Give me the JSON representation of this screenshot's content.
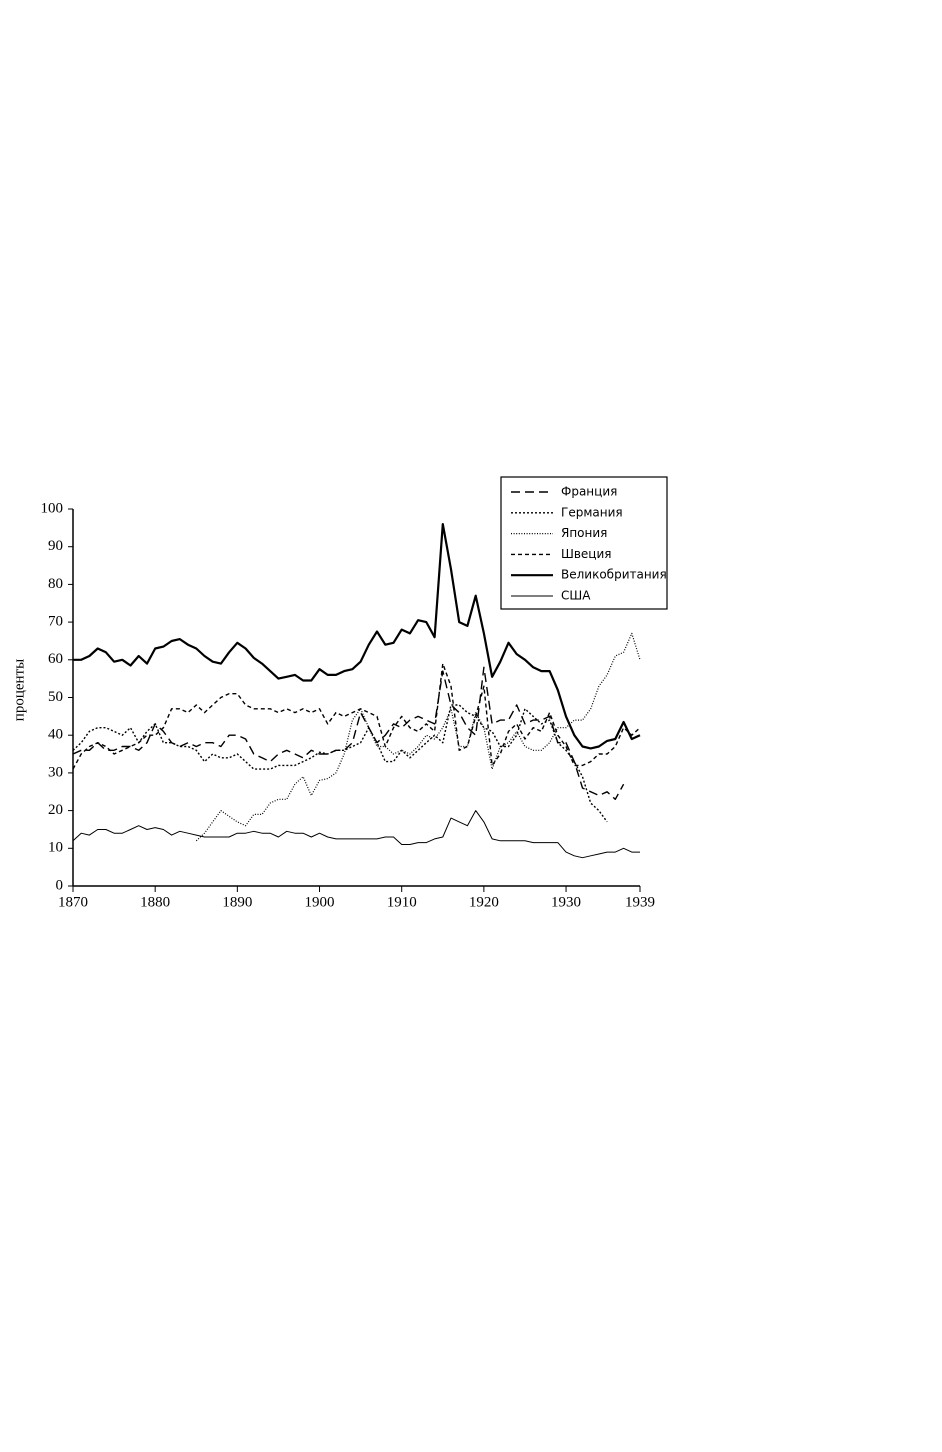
{
  "chart_data": {
    "type": "line",
    "y_label": "проценты",
    "x": [
      1870,
      1871,
      1872,
      1873,
      1874,
      1875,
      1876,
      1877,
      1878,
      1879,
      1880,
      1881,
      1882,
      1883,
      1884,
      1885,
      1886,
      1887,
      1888,
      1889,
      1890,
      1891,
      1892,
      1893,
      1894,
      1895,
      1896,
      1897,
      1898,
      1899,
      1900,
      1901,
      1902,
      1903,
      1904,
      1905,
      1906,
      1907,
      1908,
      1909,
      1910,
      1911,
      1912,
      1913,
      1914,
      1915,
      1916,
      1917,
      1918,
      1919,
      1920,
      1921,
      1922,
      1923,
      1924,
      1925,
      1926,
      1927,
      1928,
      1929,
      1930,
      1931,
      1932,
      1933,
      1934,
      1935,
      1936,
      1937,
      1938,
      1939
    ],
    "series": [
      {
        "name": "Франция",
        "color": "#000000",
        "linestyle": "dashed",
        "values": [
          35,
          36,
          36,
          38,
          36,
          36,
          37,
          37,
          36,
          38,
          43,
          41,
          38,
          37,
          38,
          37,
          38,
          38,
          37,
          40,
          40,
          39,
          35,
          34,
          33,
          35,
          36,
          35,
          34,
          36,
          35,
          35,
          36,
          36,
          38,
          46,
          42,
          38,
          40,
          43,
          42,
          44,
          45,
          44,
          43,
          57,
          48,
          46,
          42,
          40,
          58,
          43,
          44,
          44,
          48,
          43,
          44,
          44,
          45,
          38,
          38,
          33,
          26,
          25,
          24,
          25,
          23,
          27,
          null,
          null
        ]
      },
      {
        "name": "Германия",
        "color": "#000000",
        "linestyle": "dotted",
        "values": [
          36,
          38,
          41,
          42,
          42,
          41,
          40,
          42,
          38,
          41,
          43,
          38,
          38,
          37,
          37,
          36,
          33,
          35,
          34,
          34,
          35,
          33,
          31,
          31,
          31,
          32,
          32,
          32,
          33,
          34,
          35.5,
          35,
          36,
          36,
          37,
          38,
          42,
          38,
          33,
          33,
          36,
          34,
          36,
          38,
          40,
          38,
          48,
          48,
          46,
          45,
          42,
          41,
          37,
          37,
          40,
          47,
          45,
          43,
          44,
          38,
          36,
          33,
          29,
          22,
          20,
          17,
          null,
          null,
          null,
          null
        ]
      },
      {
        "name": "Япония",
        "color": "#000000",
        "linestyle": "densely-dotted",
        "values": [
          null,
          null,
          null,
          null,
          null,
          null,
          null,
          null,
          null,
          null,
          null,
          null,
          null,
          null,
          null,
          12,
          14,
          17,
          20,
          18.5,
          17,
          16,
          19,
          19,
          22,
          23,
          23,
          27,
          29,
          24,
          28,
          28.5,
          30,
          35,
          44,
          47,
          42,
          37,
          37,
          35,
          36,
          35,
          37,
          40,
          39,
          42,
          47,
          37,
          37,
          46,
          42,
          31,
          37,
          38,
          41,
          37,
          36,
          36,
          38,
          42,
          42,
          44,
          44,
          47,
          53,
          56,
          61,
          62,
          67,
          60
        ]
      },
      {
        "name": "Швеция",
        "color": "#000000",
        "linestyle": "short-dashed",
        "values": [
          31,
          35,
          37,
          38,
          37,
          35,
          36,
          37,
          38,
          40,
          40,
          42,
          47,
          47,
          46,
          48,
          46,
          48,
          50,
          51,
          51,
          48,
          47,
          47,
          47,
          46,
          47,
          46,
          47,
          46,
          47,
          43,
          46,
          45,
          46,
          47,
          46,
          45,
          37,
          42,
          45,
          42,
          41,
          43,
          41,
          59,
          53,
          36,
          37,
          45,
          53,
          32,
          35,
          41,
          43,
          39,
          42,
          41,
          46,
          40,
          37,
          32,
          32,
          33,
          35,
          35,
          37,
          42,
          40,
          42
        ]
      },
      {
        "name": "Великобритания",
        "color": "#000000",
        "linestyle": "thick-solid",
        "values": [
          60,
          60,
          61,
          63,
          62,
          59.5,
          60,
          58.5,
          61,
          59,
          63,
          63.5,
          65,
          65.5,
          64,
          63,
          61,
          59.5,
          59,
          62,
          64.5,
          63,
          60.5,
          59,
          57,
          55,
          55.5,
          56,
          54.5,
          54.5,
          57.5,
          56,
          56,
          57,
          57.5,
          59.5,
          64,
          67.5,
          64,
          64.5,
          68,
          67,
          70.5,
          70,
          66,
          96,
          84,
          70,
          69,
          77,
          67,
          55.5,
          59.5,
          64.5,
          61.5,
          60,
          58,
          57,
          57,
          52,
          45,
          40,
          37,
          36.5,
          37,
          38.5,
          39,
          43.5,
          39,
          40
        ]
      },
      {
        "name": "США",
        "color": "#000000",
        "linestyle": "solid",
        "values": [
          12,
          14,
          13.5,
          15,
          15,
          14,
          14,
          15,
          16,
          15,
          15.5,
          15,
          13.5,
          14.5,
          14,
          13.5,
          13,
          13,
          13,
          13,
          14,
          14,
          14.5,
          14,
          14,
          13,
          14.5,
          14,
          14,
          13,
          14,
          13,
          12.5,
          12.5,
          12.5,
          12.5,
          12.5,
          12.5,
          13,
          13,
          11,
          11,
          11.5,
          11.5,
          12.5,
          13,
          18,
          17,
          16,
          20,
          17,
          12.5,
          12,
          12,
          12,
          12,
          11.5,
          11.5,
          11.5,
          11.5,
          9,
          8,
          7.5,
          8,
          8.5,
          9,
          9,
          10,
          9,
          9
        ]
      }
    ],
    "xlim": [
      1870,
      1939
    ],
    "xticks": [
      1870,
      1880,
      1890,
      1900,
      1910,
      1920,
      1930,
      1939
    ],
    "ylim": [
      0,
      100
    ],
    "yticks": [
      0,
      10,
      20,
      30,
      40,
      50,
      60,
      70,
      80,
      90,
      100
    ],
    "legend": "upper-right"
  }
}
